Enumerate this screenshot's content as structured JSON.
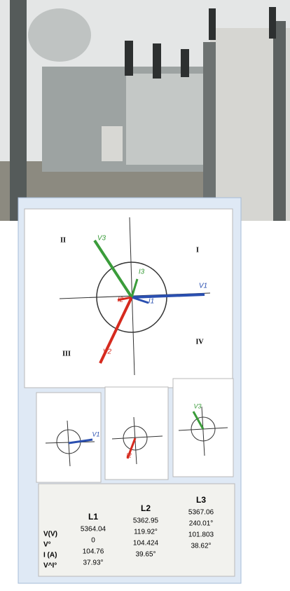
{
  "phasor_panel": {
    "quadrants": [
      "II",
      "I",
      "III",
      "IV"
    ],
    "labels": [
      "V3",
      "V1",
      "I3",
      "I1",
      "I2",
      "V2"
    ]
  },
  "small_panels": [
    "V1",
    "I2",
    "V3"
  ],
  "table": {
    "headers": [
      "L1",
      "L2",
      "L3"
    ],
    "row_labels": [
      "V(V)",
      "V°",
      "I (A)",
      "V^I°"
    ],
    "rows": [
      [
        "5364.04",
        "5362.95",
        "5367.06"
      ],
      [
        "0",
        "119.92°",
        "240.01°"
      ],
      [
        "104.76",
        "104.424",
        "101.803"
      ],
      [
        "37.93°",
        "39.65°",
        "38.62°"
      ]
    ]
  }
}
